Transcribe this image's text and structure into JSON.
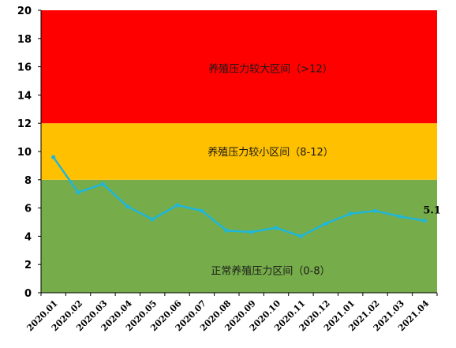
{
  "chart_data": {
    "type": "line",
    "title": "",
    "xlabel": "",
    "ylabel": "",
    "ylim": [
      0,
      20
    ],
    "yticks": [
      0,
      2,
      4,
      6,
      8,
      10,
      12,
      14,
      16,
      18,
      20
    ],
    "grid": false,
    "categories": [
      "2020.01",
      "2020.02",
      "2020.03",
      "2020.04",
      "2020.05",
      "2020.06",
      "2020.07",
      "2020.08",
      "2020.09",
      "2020.10",
      "2020.11",
      "2020.12",
      "2021.01",
      "2021.02",
      "2021.03",
      "2021.04"
    ],
    "series": [
      {
        "values": [
          9.6,
          7.1,
          7.7,
          6.1,
          5.2,
          6.2,
          5.8,
          4.4,
          4.3,
          4.6,
          4.0,
          4.9,
          5.6,
          5.8,
          5.4,
          5.1
        ],
        "color": "#1fb6d9"
      }
    ],
    "zones": [
      {
        "label": "正常养殖压力区间（0-8）",
        "from": 0,
        "to": 8,
        "color": "#76ad4a"
      },
      {
        "label": "养殖压力较小区间（8-12）",
        "from": 8,
        "to": 12,
        "color": "#ffc000"
      },
      {
        "label": "养殖压力较大区间（>12）",
        "from": 12,
        "to": 20,
        "color": "#ff0000"
      }
    ],
    "annotations": [
      {
        "category": "2021.04",
        "text": "5.1"
      }
    ]
  }
}
